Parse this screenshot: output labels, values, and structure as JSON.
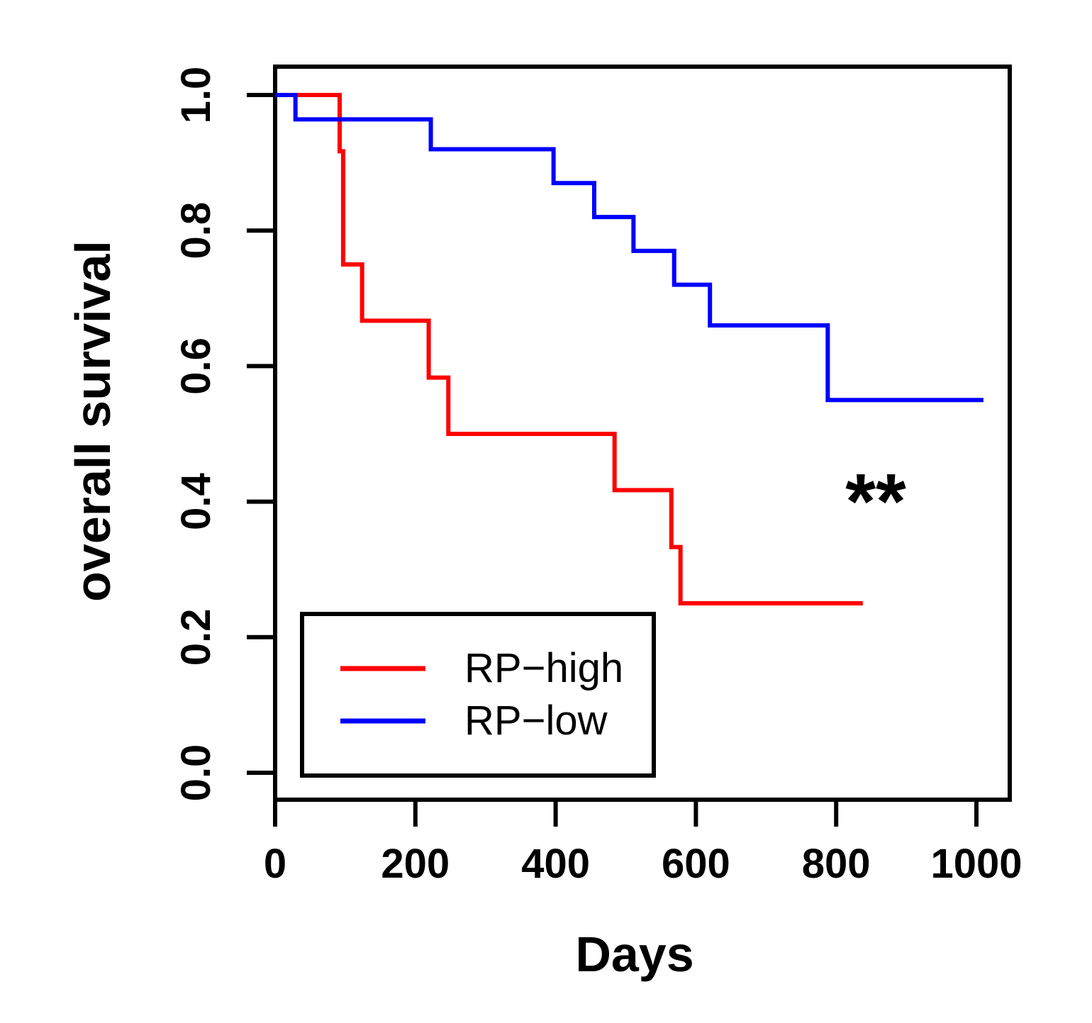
{
  "chart_data": {
    "type": "line",
    "subtype": "kaplan-meier step curve",
    "title": "",
    "xlabel": "Days",
    "ylabel": "overall survival",
    "xlim": [
      0,
      1050
    ],
    "ylim": [
      -0.08,
      1.08
    ],
    "xticks": [
      0,
      200,
      400,
      600,
      800,
      1000
    ],
    "xtick_labels": [
      "0",
      "200",
      "400",
      "600",
      "800",
      "1000"
    ],
    "yticks": [
      0.0,
      0.2,
      0.4,
      0.6,
      0.8,
      1.0
    ],
    "ytick_labels": [
      "0.0",
      "0.2",
      "0.4",
      "0.6",
      "0.8",
      "1.0"
    ],
    "grid": false,
    "legend_position": "bottom-left",
    "annotation": "**",
    "series": [
      {
        "name": "RP−high",
        "color": "#ff0000",
        "steps": [
          {
            "x": 0,
            "y": 1.0
          },
          {
            "x": 92,
            "y": 0.917
          },
          {
            "x": 97,
            "y": 0.75
          },
          {
            "x": 124,
            "y": 0.667
          },
          {
            "x": 219,
            "y": 0.583
          },
          {
            "x": 247,
            "y": 0.5
          },
          {
            "x": 484,
            "y": 0.417
          },
          {
            "x": 565,
            "y": 0.333
          },
          {
            "x": 578,
            "y": 0.25
          }
        ],
        "x_end": 838
      },
      {
        "name": "RP−low",
        "color": "#0000ff",
        "steps": [
          {
            "x": 0,
            "y": 1.0
          },
          {
            "x": 29,
            "y": 0.964
          },
          {
            "x": 222,
            "y": 0.92
          },
          {
            "x": 397,
            "y": 0.87
          },
          {
            "x": 455,
            "y": 0.82
          },
          {
            "x": 511,
            "y": 0.77
          },
          {
            "x": 569,
            "y": 0.72
          },
          {
            "x": 620,
            "y": 0.66
          },
          {
            "x": 788,
            "y": 0.55
          }
        ],
        "x_end": 1010
      }
    ]
  }
}
